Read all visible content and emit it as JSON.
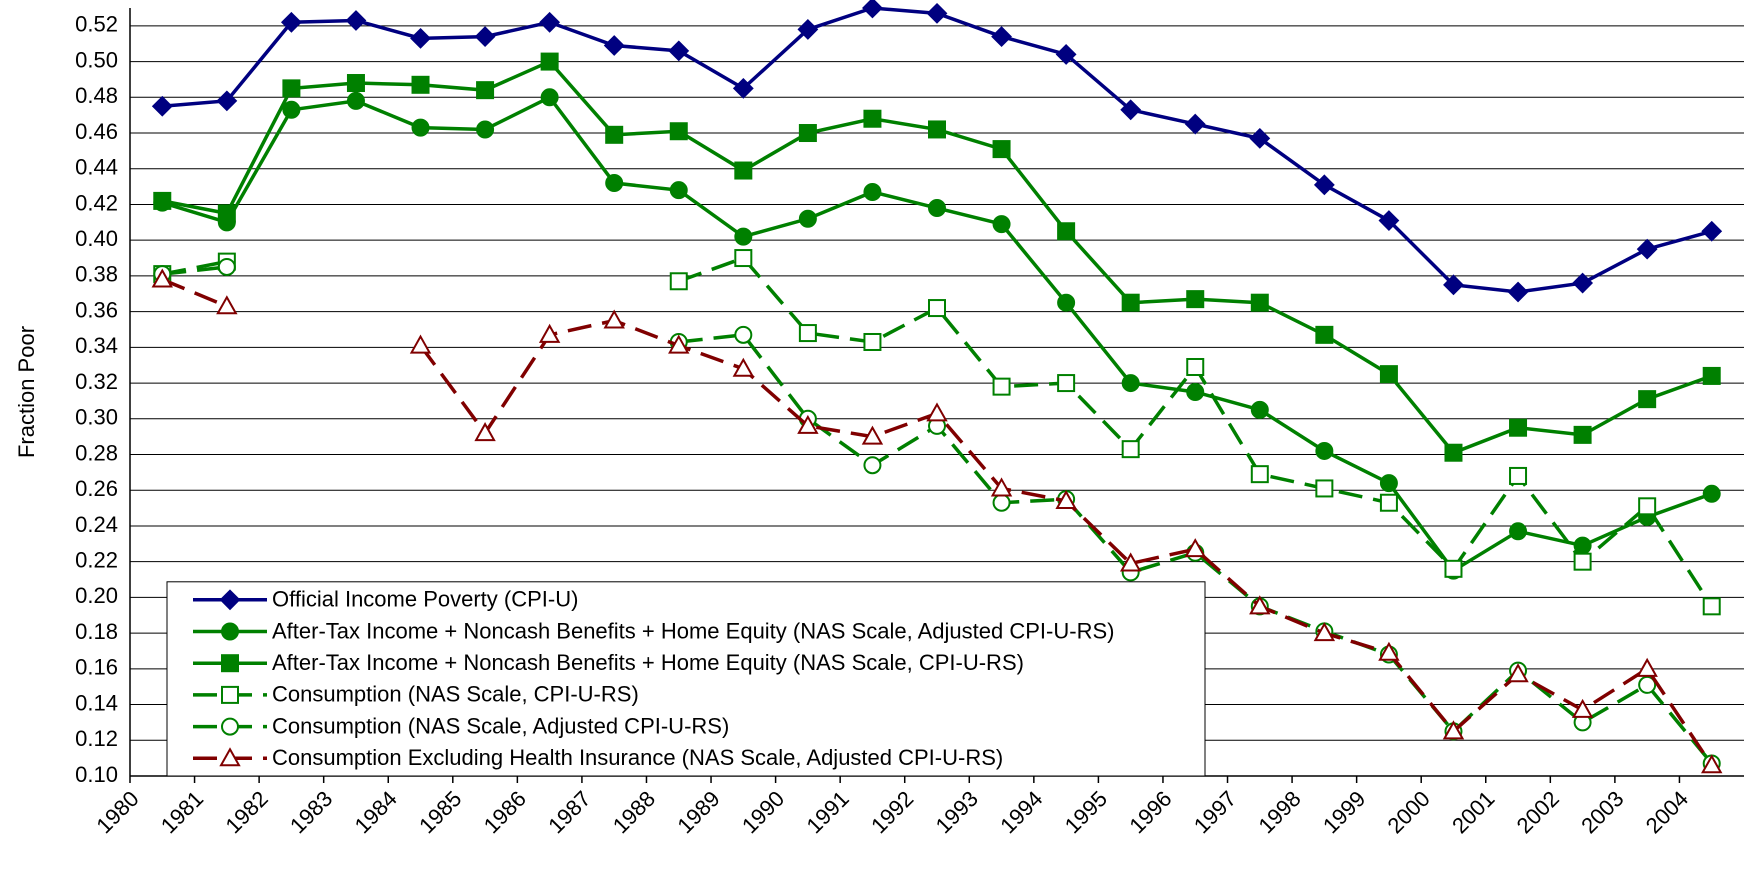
{
  "chart_data": {
    "type": "line",
    "y_label": "Fraction Poor",
    "x": [
      1980.5,
      1981.5,
      1982.5,
      1983.5,
      1984.5,
      1985.5,
      1986.5,
      1987.5,
      1988.5,
      1989.5,
      1990.5,
      1991.5,
      1992.5,
      1993.5,
      1994.5,
      1995.5,
      1996.5,
      1997.5,
      1998.5,
      1999.5,
      2000.5,
      2001.5,
      2002.5,
      2003.5,
      2004.5
    ],
    "xlim": [
      1980,
      2005
    ],
    "xticks": [
      1980,
      1981,
      1982,
      1983,
      1984,
      1985,
      1986,
      1987,
      1988,
      1989,
      1990,
      1991,
      1992,
      1993,
      1994,
      1995,
      1996,
      1997,
      1998,
      1999,
      2000,
      2001,
      2002,
      2003,
      2004
    ],
    "ylim": [
      0.1,
      0.53
    ],
    "yticks": [
      {
        "value": 0.1,
        "label": "0.10"
      },
      0.12,
      0.14,
      0.16,
      0.18,
      {
        "value": 0.2,
        "label": "0.20"
      },
      0.22,
      0.24,
      0.26,
      0.28,
      {
        "value": 0.3,
        "label": "0.30"
      },
      0.32,
      0.34,
      0.36,
      0.38,
      {
        "value": 0.4,
        "label": "0.40"
      },
      0.42,
      0.44,
      0.46,
      0.48,
      {
        "value": 0.5,
        "label": "0.50"
      },
      0.52
    ],
    "grid": true,
    "legend": "lower left",
    "series": [
      {
        "name": "Official Income Poverty (CPI-U)",
        "color": "#000080",
        "marker": "diamond",
        "filled": true,
        "dashed": false,
        "values": [
          0.475,
          0.478,
          0.522,
          0.523,
          0.513,
          0.514,
          0.522,
          0.509,
          0.506,
          0.485,
          0.518,
          0.53,
          0.527,
          0.514,
          0.504,
          0.473,
          0.465,
          0.457,
          0.431,
          0.411,
          0.375,
          0.371,
          0.376,
          0.395,
          0.405
        ]
      },
      {
        "name": "After-Tax Income + Noncash Benefits + Home Equity (NAS Scale, Adjusted CPI-U-RS)",
        "color": "#008000",
        "marker": "circle",
        "filled": true,
        "dashed": false,
        "values": [
          0.421,
          0.41,
          0.473,
          0.478,
          0.463,
          0.462,
          0.48,
          0.432,
          0.428,
          0.402,
          0.412,
          0.427,
          0.418,
          0.409,
          0.365,
          0.32,
          0.315,
          0.305,
          0.282,
          0.264,
          0.215,
          0.237,
          0.229,
          0.245,
          0.258
        ]
      },
      {
        "name": "After-Tax Income + Noncash Benefits + Home Equity (NAS Scale, CPI-U-RS)",
        "color": "#008000",
        "marker": "square",
        "filled": true,
        "dashed": false,
        "values": [
          0.422,
          0.415,
          0.485,
          0.488,
          0.487,
          0.484,
          0.5,
          0.459,
          0.461,
          0.439,
          0.46,
          0.468,
          0.462,
          0.451,
          0.405,
          0.365,
          0.367,
          0.365,
          0.347,
          0.325,
          0.281,
          0.295,
          0.291,
          0.311,
          0.324
        ]
      },
      {
        "name": "Consumption (NAS Scale, CPI-U-RS)",
        "color": "#008000",
        "marker": "square",
        "filled": false,
        "dashed": true,
        "values": [
          0.381,
          0.388,
          null,
          null,
          null,
          null,
          null,
          null,
          0.377,
          0.39,
          0.348,
          0.343,
          0.362,
          0.318,
          0.32,
          0.283,
          0.329,
          0.269,
          0.261,
          0.253,
          0.216,
          0.268,
          0.22,
          0.251,
          0.195
        ]
      },
      {
        "name": "Consumption (NAS Scale, Adjusted CPI-U-RS)",
        "color": "#008000",
        "marker": "circle",
        "filled": false,
        "dashed": true,
        "values": [
          0.381,
          0.385,
          null,
          null,
          null,
          null,
          null,
          null,
          0.343,
          0.347,
          0.3,
          0.274,
          0.296,
          0.253,
          0.255,
          0.214,
          0.225,
          0.195,
          0.181,
          0.168,
          0.125,
          0.159,
          0.13,
          0.151,
          0.107
        ]
      },
      {
        "name": "Consumption Excluding Health Insurance (NAS Scale, Adjusted CPI-U-RS)",
        "color": "#800000",
        "marker": "triangle",
        "filled": false,
        "dashed": true,
        "values": [
          0.378,
          0.363,
          null,
          null,
          0.341,
          0.292,
          0.347,
          0.355,
          0.341,
          0.328,
          0.296,
          0.29,
          0.303,
          0.261,
          0.254,
          0.219,
          0.227,
          0.195,
          0.18,
          0.169,
          0.125,
          0.157,
          0.137,
          0.16,
          0.106
        ]
      }
    ]
  }
}
